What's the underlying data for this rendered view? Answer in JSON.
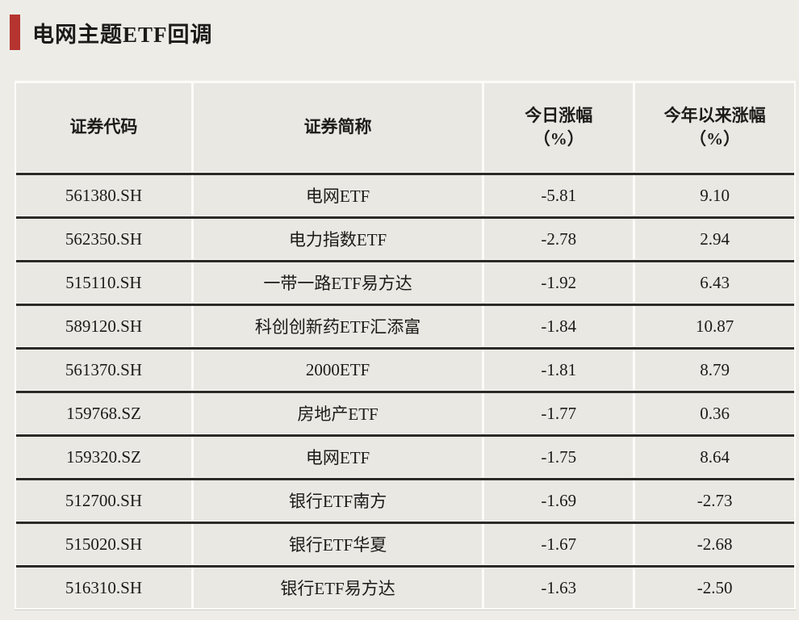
{
  "colors": {
    "accent_red": "#b5342f",
    "page_background": "#edece7",
    "cell_background": "#e9e8e3",
    "row_divider": "#2b2a27",
    "text": "#1c1b19"
  },
  "chart_data": {
    "type": "table",
    "title": "电网主题ETF回调",
    "columns": [
      {
        "label": "证券代码",
        "sub": ""
      },
      {
        "label": "证券简称",
        "sub": ""
      },
      {
        "label": "今日涨幅",
        "sub": "（%）"
      },
      {
        "label": "今年以来涨幅",
        "sub": "（%）"
      }
    ],
    "rows": [
      [
        "561380.SH",
        "电网ETF",
        "-5.81",
        "9.10"
      ],
      [
        "562350.SH",
        "电力指数ETF",
        "-2.78",
        "2.94"
      ],
      [
        "515110.SH",
        "一带一路ETF易方达",
        "-1.92",
        "6.43"
      ],
      [
        "589120.SH",
        "科创创新药ETF汇添富",
        "-1.84",
        "10.87"
      ],
      [
        "561370.SH",
        "2000ETF",
        "-1.81",
        "8.79"
      ],
      [
        "159768.SZ",
        "房地产ETF",
        "-1.77",
        "0.36"
      ],
      [
        "159320.SZ",
        "电网ETF",
        "-1.75",
        "8.64"
      ],
      [
        "512700.SH",
        "银行ETF南方",
        "-1.69",
        "-2.73"
      ],
      [
        "515020.SH",
        "银行ETF华夏",
        "-1.67",
        "-2.68"
      ],
      [
        "516310.SH",
        "银行ETF易方达",
        "-1.63",
        "-2.50"
      ]
    ]
  }
}
